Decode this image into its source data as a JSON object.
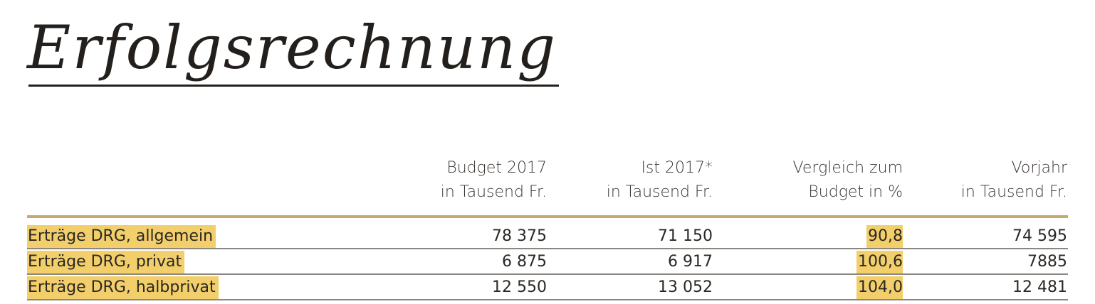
{
  "title": "Erfolgsrechnung",
  "colors": {
    "highlight": "#f2cf6a",
    "rule": "#c5aa70"
  },
  "columns": [
    {
      "line1": "Budget 2017",
      "line2": "in Tausend Fr."
    },
    {
      "line1": "Ist 2017*",
      "line2": "in Tausend Fr."
    },
    {
      "line1": "Vergleich zum",
      "line2": "Budget in %"
    },
    {
      "line1": "Vorjahr",
      "line2": "in Tausend Fr."
    }
  ],
  "rows": [
    {
      "label": "Erträge DRG, allgemein",
      "budget": "78 375",
      "ist": "71 150",
      "vergleich": "90,8",
      "vorjahr": "74 595"
    },
    {
      "label": "Erträge DRG, privat",
      "budget": "6 875",
      "ist": "6 917",
      "vergleich": "100,6",
      "vorjahr": "7885"
    },
    {
      "label": "Erträge DRG, halbprivat",
      "budget": "12 550",
      "ist": "13 052",
      "vergleich": "104,0",
      "vorjahr": "12 481"
    }
  ]
}
